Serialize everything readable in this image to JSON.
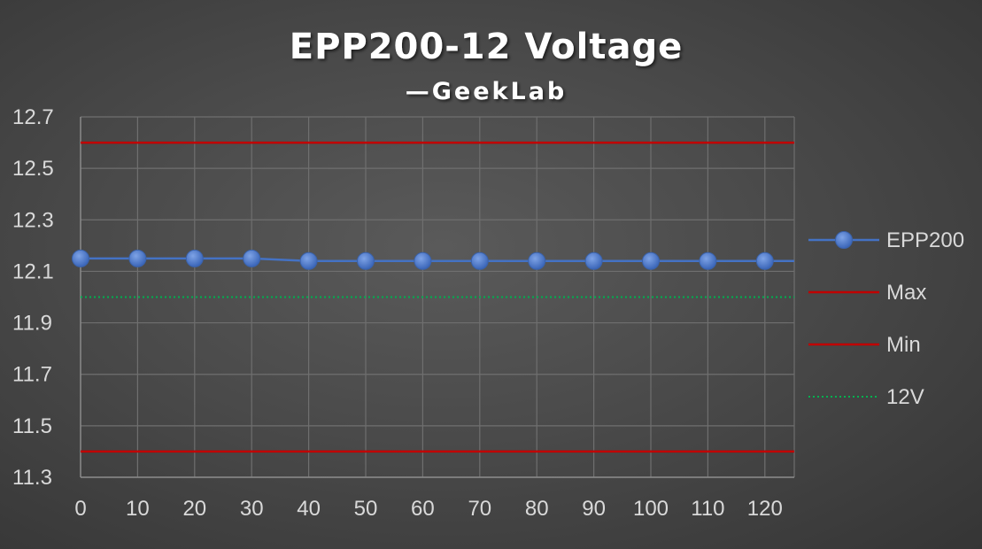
{
  "chart_data": {
    "type": "line",
    "title": "EPP200-12 Voltage",
    "subtitle": "—GeekLab",
    "xlabel": "",
    "ylabel": "",
    "x": [
      0,
      10,
      20,
      30,
      40,
      50,
      60,
      70,
      80,
      90,
      100,
      110,
      120
    ],
    "x_tick_labels": [
      "0",
      "10",
      "20",
      "30",
      "40",
      "50",
      "60",
      "70",
      "80",
      "90",
      "100",
      "110",
      "120"
    ],
    "y_tick_labels": [
      "12.7",
      "12.5",
      "12.3",
      "12.1",
      "11.9",
      "11.7",
      "11.5",
      "11.3"
    ],
    "y_ticks": [
      12.7,
      12.5,
      12.3,
      12.1,
      11.9,
      11.7,
      11.5,
      11.3
    ],
    "ylim": [
      11.3,
      12.7
    ],
    "xlim": [
      0,
      125
    ],
    "grid": true,
    "legend_position": "right",
    "series": [
      {
        "name": "EPP200",
        "style": "line-marker",
        "color": "#4472c4",
        "values": [
          12.15,
          12.15,
          12.15,
          12.15,
          12.14,
          12.14,
          12.14,
          12.14,
          12.14,
          12.14,
          12.14,
          12.14,
          12.14
        ]
      },
      {
        "name": "Max",
        "style": "line",
        "color": "#c00000",
        "constant": 12.6
      },
      {
        "name": "Min",
        "style": "line",
        "color": "#c00000",
        "constant": 11.4
      },
      {
        "name": "12V",
        "style": "dotted",
        "color": "#00b050",
        "constant": 12.0
      }
    ]
  }
}
